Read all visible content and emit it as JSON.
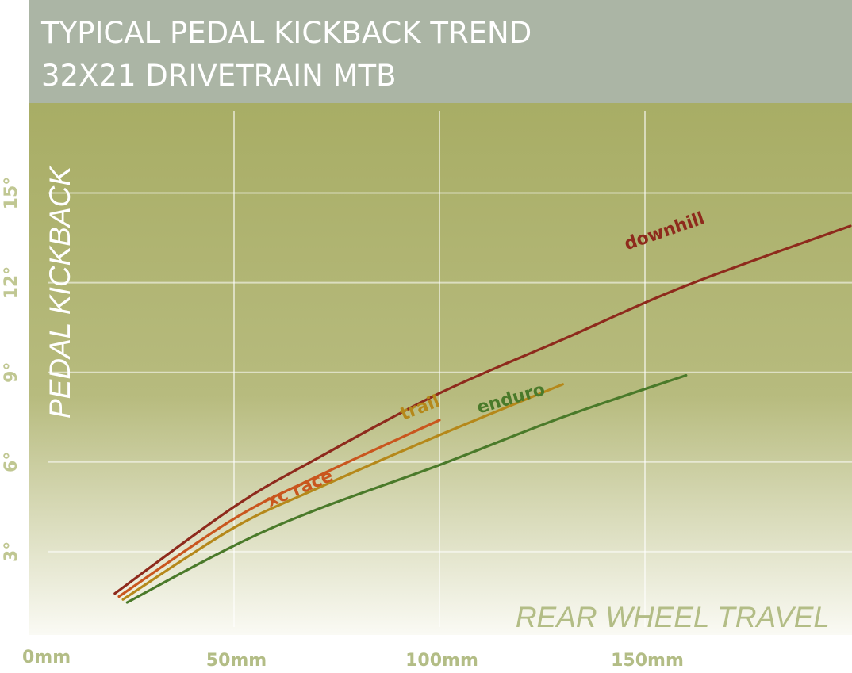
{
  "header": {
    "title_line1": "TYPICAL PEDAL KICKBACK TREND",
    "title_line2": "32X21 DRIVETRAIN MTB"
  },
  "colors": {
    "header_bg": "#abb5a5",
    "plot_top": "#a8ad65",
    "plot_bottom": "#fafaf4",
    "downhill": "#8e2a1c",
    "xc_race": "#c9561e",
    "trail": "#b5881a",
    "enduro": "#4a7a2a"
  },
  "chart_data": {
    "type": "line",
    "title": "TYPICAL PEDAL KICKBACK TREND 32X21 DRIVETRAIN MTB",
    "xlabel": "REAR WHEEL TRAVEL",
    "ylabel": "PEDAL KICKBACK",
    "xlim": [
      0,
      200
    ],
    "ylim": [
      0,
      18
    ],
    "grid": true,
    "x_ticks": [
      {
        "value": 0,
        "label": "0mm"
      },
      {
        "value": 50,
        "label": "50mm"
      },
      {
        "value": 100,
        "label": "100mm"
      },
      {
        "value": 150,
        "label": "150mm"
      }
    ],
    "y_ticks": [
      {
        "value": 3,
        "label": "3°"
      },
      {
        "value": 6,
        "label": "6°"
      },
      {
        "value": 9,
        "label": "9°"
      },
      {
        "value": 12,
        "label": "12°"
      },
      {
        "value": 15,
        "label": "15°"
      }
    ],
    "series": [
      {
        "name": "downhill",
        "color": "#8e2a1c",
        "x": [
          21,
          50,
          70,
          100,
          130,
          160,
          200
        ],
        "y": [
          1.6,
          4.5,
          6.1,
          8.3,
          10.1,
          11.9,
          13.9
        ]
      },
      {
        "name": "xc race",
        "color": "#c9561e",
        "x": [
          22,
          50,
          70,
          100
        ],
        "y": [
          1.5,
          4.1,
          5.5,
          7.4
        ]
      },
      {
        "name": "trail",
        "color": "#b5881a",
        "x": [
          23,
          50,
          70,
          100,
          130
        ],
        "y": [
          1.4,
          3.8,
          5.1,
          6.9,
          8.6
        ]
      },
      {
        "name": "enduro",
        "color": "#4a7a2a",
        "x": [
          24,
          50,
          70,
          100,
          130,
          160
        ],
        "y": [
          1.3,
          3.2,
          4.4,
          5.9,
          7.5,
          8.9
        ]
      }
    ]
  }
}
